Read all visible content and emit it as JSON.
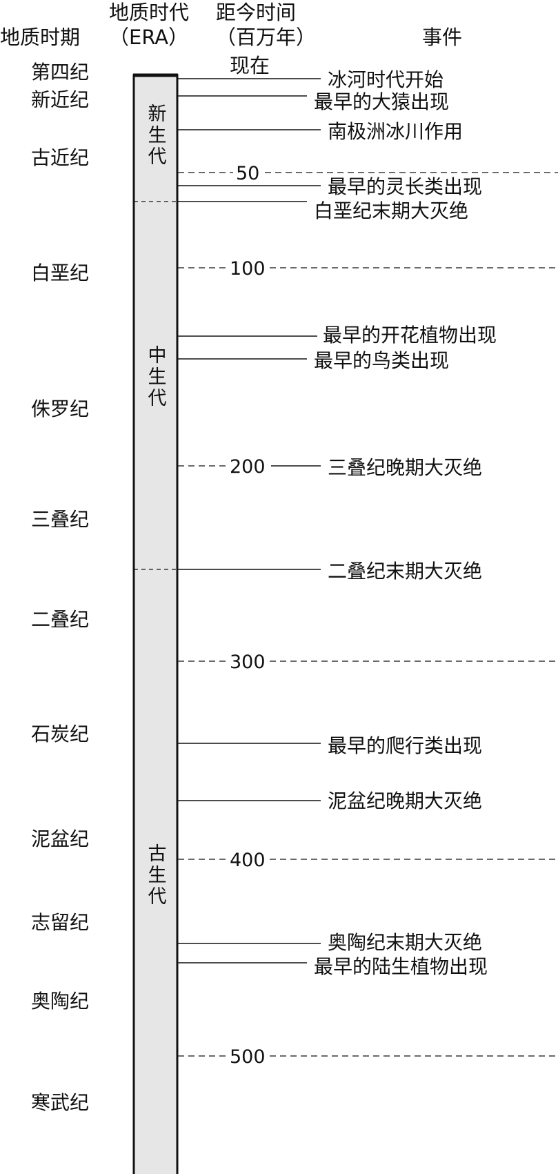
{
  "headers": {
    "period": "地质时期",
    "era_line1": "地质时代",
    "era_line2": "（ERA）",
    "time_line1": "距今时间",
    "time_line2": "（百万年）",
    "time_now": "现在",
    "events": "事件"
  },
  "periods": [
    "第四纪",
    "新近纪",
    "古近纪",
    "白垩纪",
    "侏罗纪",
    "三叠纪",
    "二叠纪",
    "石炭纪",
    "泥盆纪",
    "志留纪",
    "奥陶纪",
    "寒武纪"
  ],
  "eras": [
    "新生代",
    "中生代",
    "古生代"
  ],
  "ticks": [
    "50",
    "100",
    "200",
    "300",
    "400",
    "500"
  ],
  "events": [
    "冰河时代开始",
    "最早的大猿出现",
    "南极洲冰川作用",
    "最早的灵长类出现",
    "白垩纪末期大灭绝",
    "最早的开花植物出现",
    "最早的鸟类出现",
    "三叠纪晚期大灭绝",
    "二叠纪末期大灭绝",
    "最早的爬行类出现",
    "泥盆纪晚期大灭绝",
    "奥陶纪末期大灭绝",
    "最早的陆生植物出现"
  ],
  "colors": {
    "bar_fill": "#e6e6e6",
    "line": "#111111"
  }
}
